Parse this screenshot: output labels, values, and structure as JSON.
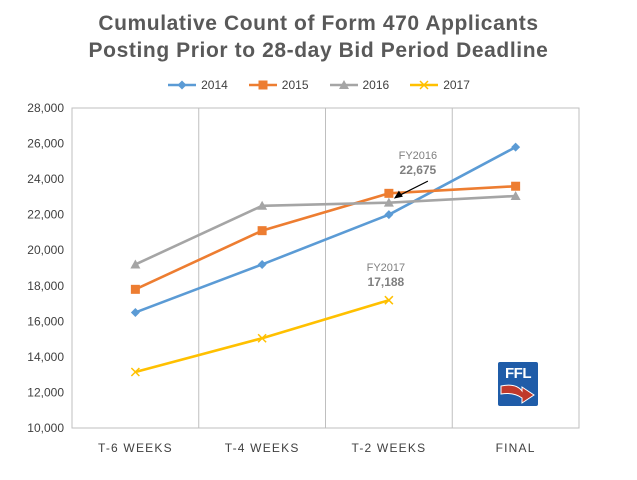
{
  "chart_data": {
    "type": "line",
    "title_lines": [
      "Cumulative Count of Form 470 Applicants",
      "Posting Prior to 28-day Bid Period Deadline"
    ],
    "categories": [
      "T-6 WEEKS",
      "T-4 WEEKS",
      "T-2 WEEKS",
      "FINAL"
    ],
    "ylim": [
      10000,
      28000
    ],
    "yticks": [
      "10,000",
      "12,000",
      "14,000",
      "16,000",
      "18,000",
      "20,000",
      "22,000",
      "24,000",
      "26,000",
      "28,000"
    ],
    "ytick_values": [
      10000,
      12000,
      14000,
      16000,
      18000,
      20000,
      22000,
      24000,
      26000,
      28000
    ],
    "legend_position": "top",
    "grid": "vertical",
    "series": [
      {
        "name": "2014",
        "color": "#5b9bd5",
        "marker": "diamond",
        "values": [
          16500,
          19200,
          22000,
          25800
        ]
      },
      {
        "name": "2015",
        "color": "#ed7d31",
        "marker": "square",
        "values": [
          17800,
          21100,
          23200,
          23600
        ]
      },
      {
        "name": "2016",
        "color": "#a5a5a5",
        "marker": "triangle",
        "values": [
          19200,
          22500,
          22675,
          23050
        ]
      },
      {
        "name": "2017",
        "color": "#ffc000",
        "marker": "x",
        "values": [
          13150,
          15050,
          17188,
          null
        ]
      }
    ],
    "annotations": [
      {
        "label": "FY2016",
        "value_text": "22,675",
        "color": "#7f7f7f",
        "arrow": true
      },
      {
        "label": "FY2017",
        "value_text": "17,188",
        "color": "#7f7f7f",
        "arrow": false
      }
    ]
  },
  "logo": {
    "text": "FFL",
    "color": "#1f5ca8",
    "accent": "#c0392b"
  }
}
